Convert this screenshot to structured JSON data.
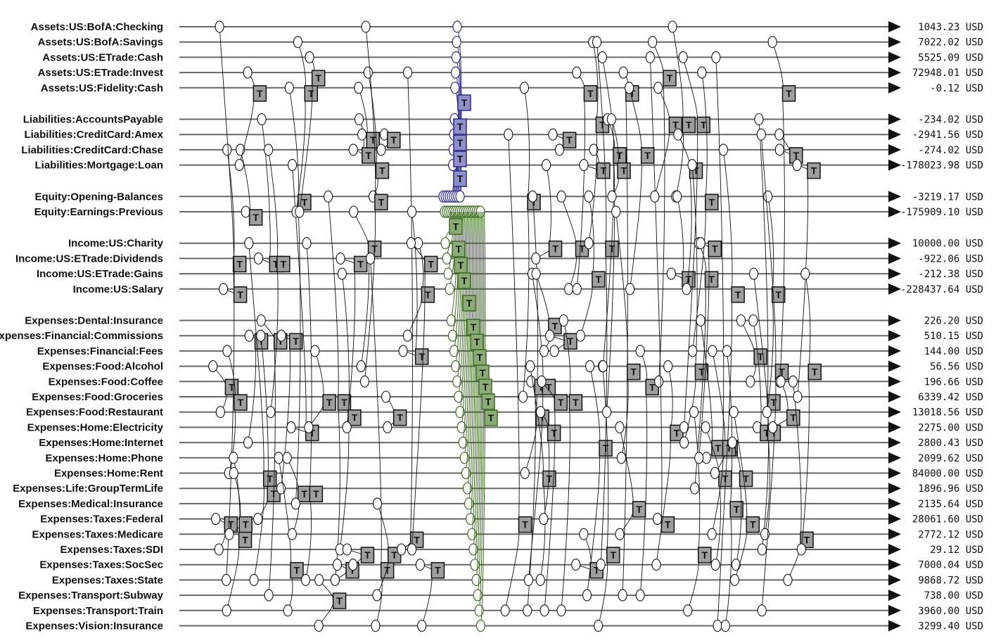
{
  "currency": "USD",
  "transaction_glyph": "T",
  "colors": {
    "line": "#666666",
    "ink": "#111111",
    "box_fill": "#9e9e9e",
    "opening_blue": "#2b2b8c",
    "opening_blue_fill": "#8f8fc9",
    "closing_green": "#3e6b22",
    "closing_green_fill": "#8aaa76"
  },
  "groups": [
    {
      "accounts": [
        {
          "name": "Assets:US:BofA:Checking",
          "balance": "1043.23"
        },
        {
          "name": "Assets:US:BofA:Savings",
          "balance": "7022.02"
        },
        {
          "name": "Assets:US:ETrade:Cash",
          "balance": "5525.09"
        },
        {
          "name": "Assets:US:ETrade:Invest",
          "balance": "72948.01"
        },
        {
          "name": "Assets:US:Fidelity:Cash",
          "balance": "-0.12"
        }
      ]
    },
    {
      "accounts": [
        {
          "name": "Liabilities:AccountsPayable",
          "balance": "-234.02"
        },
        {
          "name": "Liabilities:CreditCard:Amex",
          "balance": "-2941.56"
        },
        {
          "name": "Liabilities:CreditCard:Chase",
          "balance": "-274.02"
        },
        {
          "name": "Liabilities:Mortgage:Loan",
          "balance": "-178023.98"
        }
      ]
    },
    {
      "accounts": [
        {
          "name": "Equity:Opening-Balances",
          "balance": "-3219.17"
        },
        {
          "name": "Equity:Earnings:Previous",
          "balance": "-175909.10"
        }
      ]
    },
    {
      "accounts": [
        {
          "name": "Income:US:Charity",
          "balance": "10000.00"
        },
        {
          "name": "Income:US:ETrade:Dividends",
          "balance": "-922.06"
        },
        {
          "name": "Income:US:ETrade:Gains",
          "balance": "-212.38"
        },
        {
          "name": "Income:US:Salary",
          "balance": "-228437.64"
        }
      ]
    },
    {
      "accounts": [
        {
          "name": "Expenses:Dental:Insurance",
          "balance": "226.20"
        },
        {
          "name": "Expenses:Financial:Commissions",
          "balance": "510.15"
        },
        {
          "name": "Expenses:Financial:Fees",
          "balance": "144.00"
        },
        {
          "name": "Expenses:Food:Alcohol",
          "balance": "56.56"
        },
        {
          "name": "Expenses:Food:Coffee",
          "balance": "196.66"
        },
        {
          "name": "Expenses:Food:Groceries",
          "balance": "6339.42"
        },
        {
          "name": "Expenses:Food:Restaurant",
          "balance": "13018.56"
        },
        {
          "name": "Expenses:Home:Electricity",
          "balance": "2275.00"
        },
        {
          "name": "Expenses:Home:Internet",
          "balance": "2800.43"
        },
        {
          "name": "Expenses:Home:Phone",
          "balance": "2099.62"
        },
        {
          "name": "Expenses:Home:Rent",
          "balance": "84000.00"
        },
        {
          "name": "Expenses:Life:GroupTermLife",
          "balance": "1896.96"
        },
        {
          "name": "Expenses:Medical:Insurance",
          "balance": "2135.64"
        },
        {
          "name": "Expenses:Taxes:Federal",
          "balance": "28061.60"
        },
        {
          "name": "Expenses:Taxes:Medicare",
          "balance": "2772.12"
        },
        {
          "name": "Expenses:Taxes:SDI",
          "balance": "29.12"
        },
        {
          "name": "Expenses:Taxes:SocSec",
          "balance": "7000.04"
        },
        {
          "name": "Expenses:Taxes:State",
          "balance": "9868.72"
        },
        {
          "name": "Expenses:Transport:Subway",
          "balance": "738.00"
        },
        {
          "name": "Expenses:Transport:Train",
          "balance": "3960.00"
        },
        {
          "name": "Expenses:Vision:Insurance",
          "balance": "3299.40"
        }
      ]
    }
  ]
}
